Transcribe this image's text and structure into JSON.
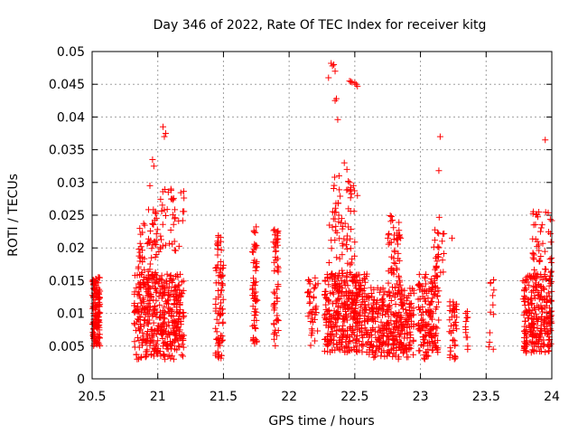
{
  "chart_data": {
    "type": "scatter",
    "title": "Day 346 of 2022, Rate Of TEC Index for receiver kitg",
    "xlabel": "GPS time / hours",
    "ylabel": "ROTI / TECUs",
    "xlim": [
      20.5,
      24
    ],
    "ylim": [
      0,
      0.05
    ],
    "grid": true,
    "marker": "+",
    "color": "#ff0000",
    "x_ticks": [
      "20.5",
      "21",
      "21.5",
      "22",
      "22.5",
      "23",
      "23.5",
      "24"
    ],
    "y_ticks": [
      "0",
      "0.005",
      "0.01",
      "0.015",
      "0.02",
      "0.025",
      "0.03",
      "0.035",
      "0.04",
      "0.045",
      "0.05"
    ],
    "clusters": [
      {
        "x": [
          20.5,
          20.56
        ],
        "y": [
          0.005,
          0.0155
        ],
        "n": 140
      },
      {
        "x": [
          20.82,
          21.2
        ],
        "y": [
          0.003,
          0.016
        ],
        "n": 420
      },
      {
        "x": [
          20.85,
          21.0
        ],
        "y": [
          0.015,
          0.026
        ],
        "n": 60
      },
      {
        "x": [
          21.0,
          21.2
        ],
        "y": [
          0.019,
          0.029
        ],
        "n": 40
      },
      {
        "x": [
          21.44,
          21.5
        ],
        "y": [
          0.003,
          0.022
        ],
        "n": 80
      },
      {
        "x": [
          21.72,
          21.76
        ],
        "y": [
          0.005,
          0.024
        ],
        "n": 60
      },
      {
        "x": [
          21.88,
          21.92
        ],
        "y": [
          0.005,
          0.024
        ],
        "n": 55
      },
      {
        "x": [
          22.14,
          22.22
        ],
        "y": [
          0.005,
          0.0155
        ],
        "n": 40
      },
      {
        "x": [
          22.27,
          22.6
        ],
        "y": [
          0.004,
          0.016
        ],
        "n": 380
      },
      {
        "x": [
          22.3,
          22.5
        ],
        "y": [
          0.016,
          0.031
        ],
        "n": 70
      },
      {
        "x": [
          22.6,
          22.95
        ],
        "y": [
          0.003,
          0.014
        ],
        "n": 320
      },
      {
        "x": [
          22.75,
          22.85
        ],
        "y": [
          0.014,
          0.025
        ],
        "n": 50
      },
      {
        "x": [
          22.98,
          23.14
        ],
        "y": [
          0.003,
          0.016
        ],
        "n": 160
      },
      {
        "x": [
          23.1,
          23.18
        ],
        "y": [
          0.016,
          0.025
        ],
        "n": 25
      },
      {
        "x": [
          23.22,
          23.28
        ],
        "y": [
          0.003,
          0.012
        ],
        "n": 40
      },
      {
        "x": [
          23.34,
          23.36
        ],
        "y": [
          0.0045,
          0.012
        ],
        "n": 12
      },
      {
        "x": [
          23.52,
          23.56
        ],
        "y": [
          0.004,
          0.016
        ],
        "n": 12
      },
      {
        "x": [
          23.78,
          24.0
        ],
        "y": [
          0.004,
          0.016
        ],
        "n": 260
      },
      {
        "x": [
          23.85,
          24.0
        ],
        "y": [
          0.016,
          0.026
        ],
        "n": 45
      }
    ],
    "points": [
      [
        21.04,
        0.0385
      ],
      [
        21.06,
        0.0375
      ],
      [
        21.05,
        0.037
      ],
      [
        20.96,
        0.0335
      ],
      [
        20.97,
        0.0325
      ],
      [
        20.94,
        0.0295
      ],
      [
        21.08,
        0.0285
      ],
      [
        21.1,
        0.029
      ],
      [
        21.11,
        0.0275
      ],
      [
        22.32,
        0.0482
      ],
      [
        22.34,
        0.048
      ],
      [
        22.33,
        0.0478
      ],
      [
        22.35,
        0.047
      ],
      [
        22.3,
        0.046
      ],
      [
        22.35,
        0.0425
      ],
      [
        22.36,
        0.0428
      ],
      [
        22.37,
        0.0396
      ],
      [
        22.46,
        0.0455
      ],
      [
        22.47,
        0.0454
      ],
      [
        22.48,
        0.0453
      ],
      [
        22.5,
        0.0452
      ],
      [
        22.51,
        0.045
      ],
      [
        22.52,
        0.0447
      ],
      [
        22.38,
        0.031
      ],
      [
        22.42,
        0.033
      ],
      [
        22.44,
        0.032
      ],
      [
        22.46,
        0.03
      ],
      [
        22.52,
        0.028
      ],
      [
        23.15,
        0.037
      ],
      [
        23.14,
        0.0318
      ],
      [
        23.24,
        0.0215
      ],
      [
        23.95,
        0.0365
      ]
    ]
  }
}
